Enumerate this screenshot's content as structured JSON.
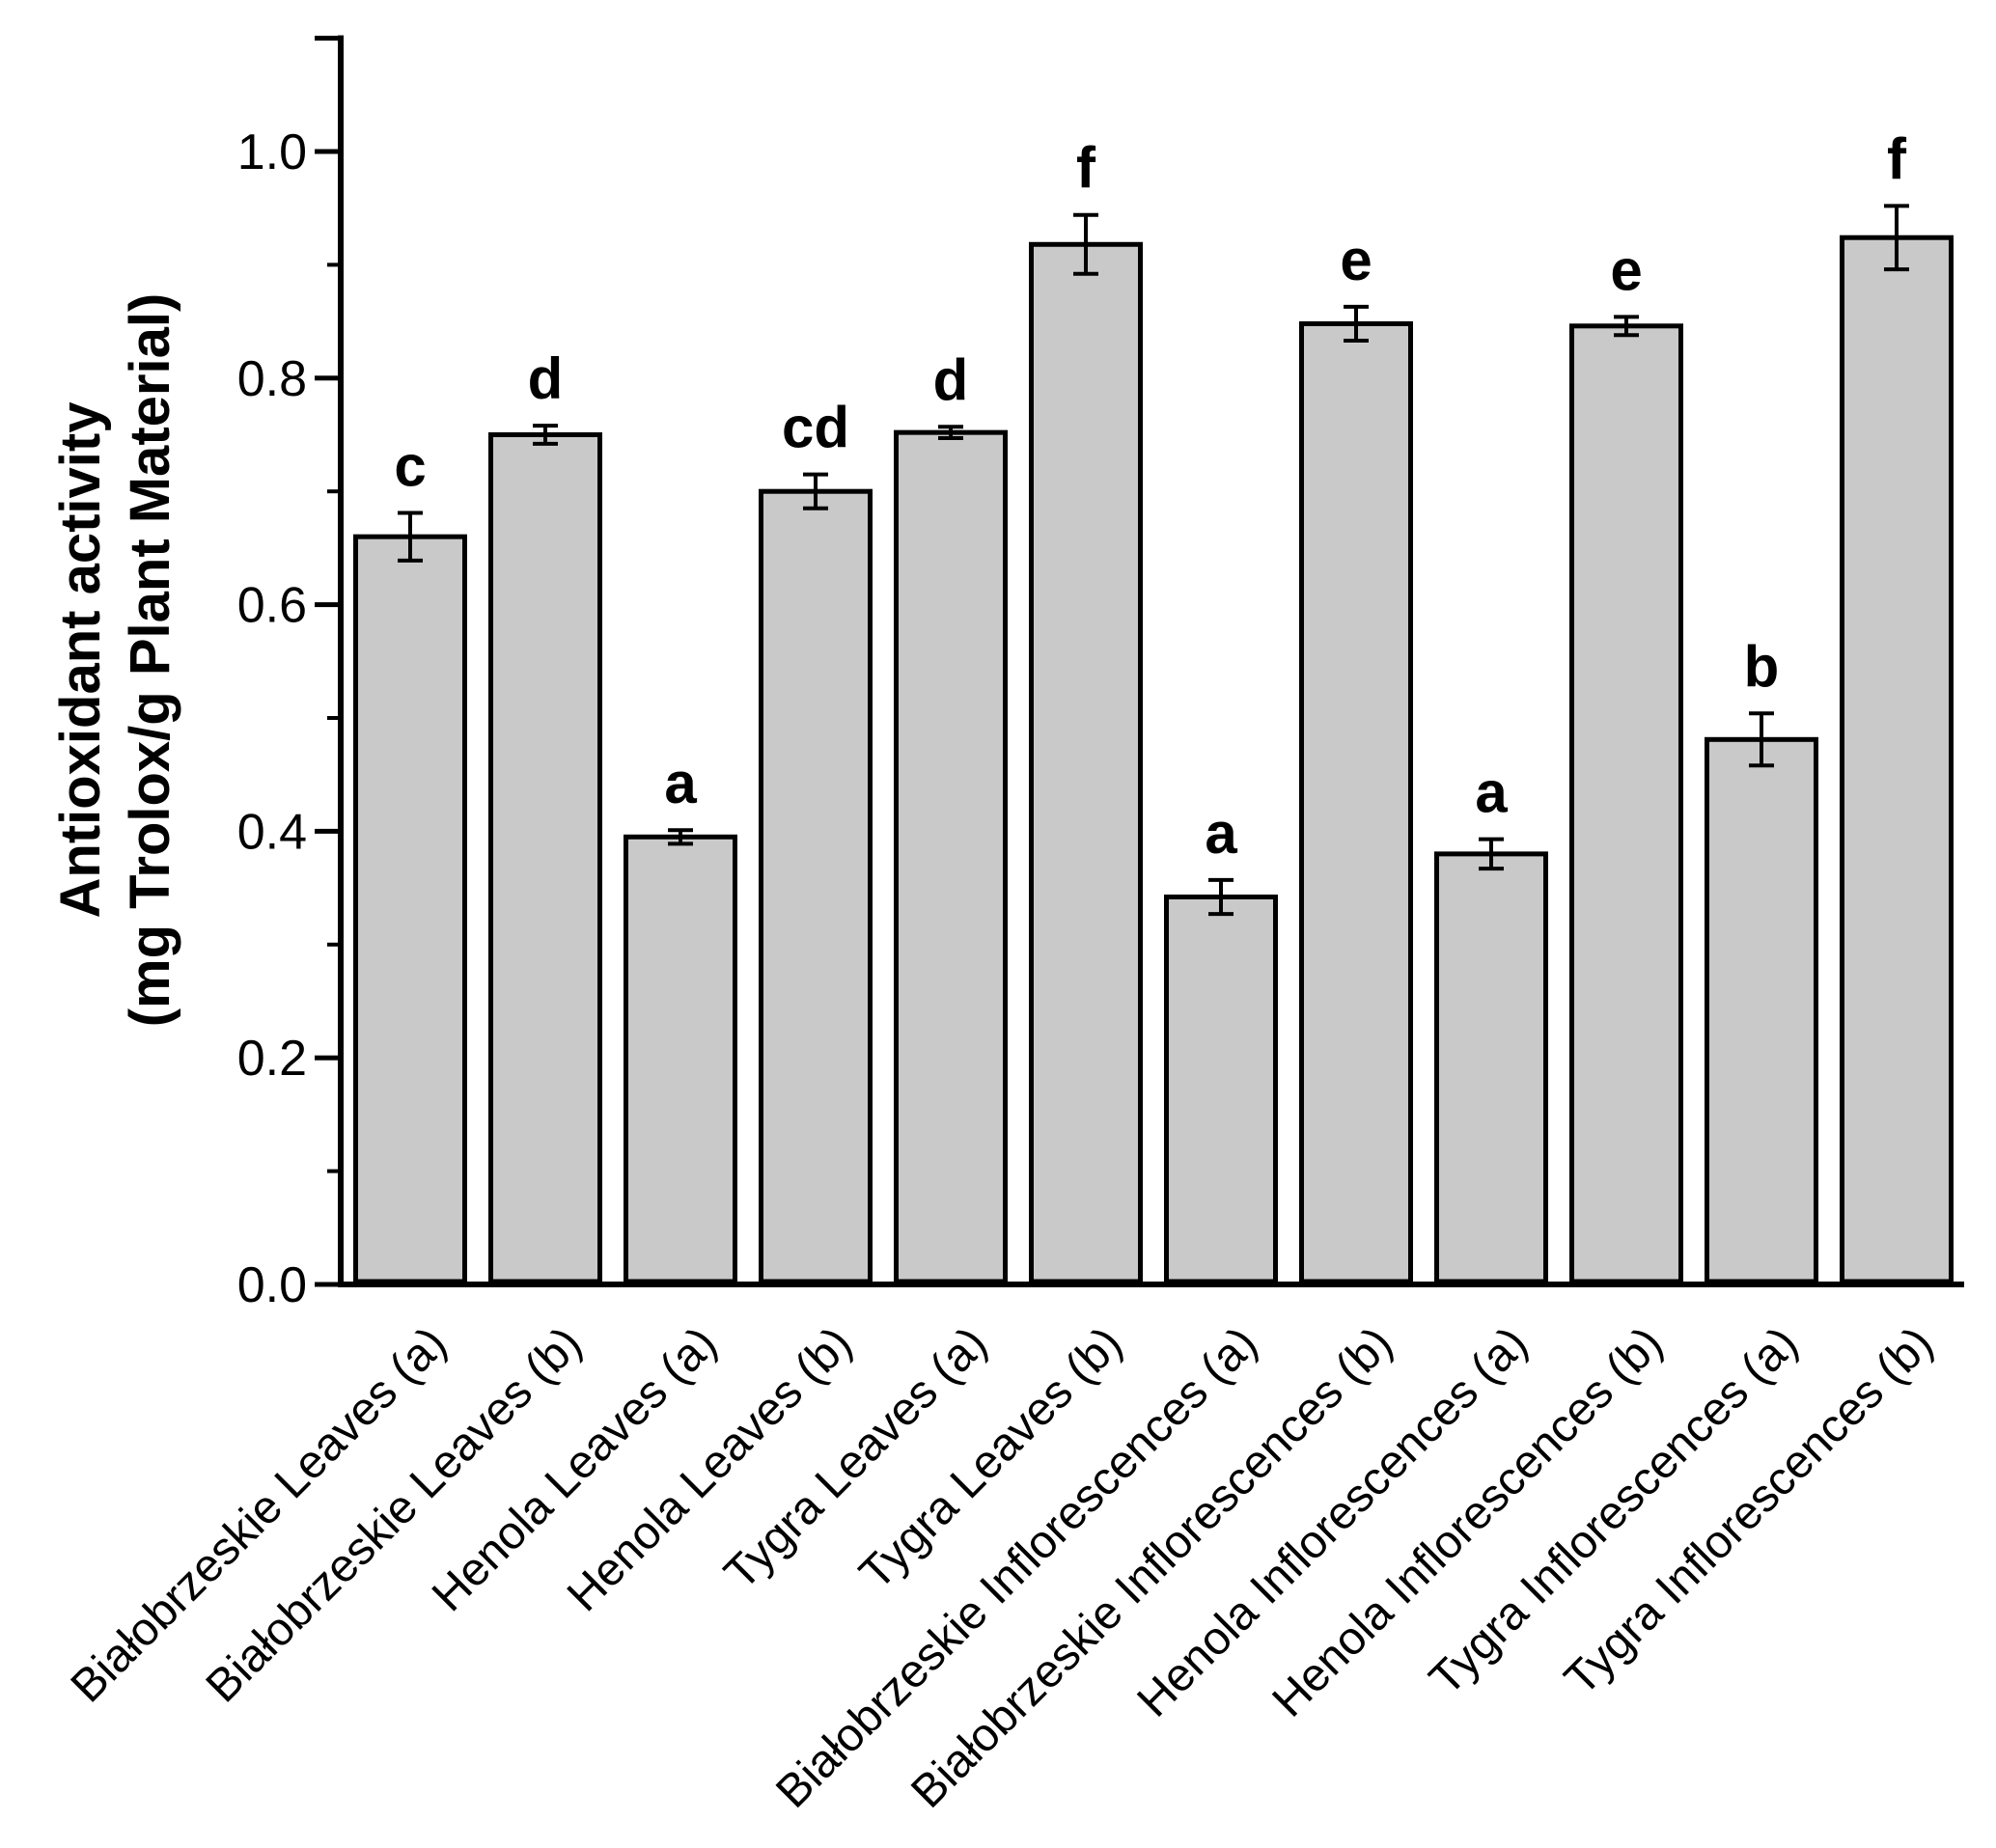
{
  "figure": {
    "background": "#ffffff",
    "y_axis_title_line1": "Antioxidant activity",
    "y_axis_title_line2": "(mg Trolox/g Plant Material)"
  },
  "chart_data": {
    "type": "bar",
    "title": "",
    "xlabel": "",
    "ylabel": "Antioxidant activity (mg Trolox/g Plant Material)",
    "ylim": [
      0.0,
      1.1
    ],
    "grid": false,
    "legend": "none",
    "bar_fill_color": "#c9c9c9",
    "bar_border_color": "#000000",
    "error_bar_color": "#000000",
    "axis_color": "#000000",
    "y_major_ticks": [
      0.0,
      0.2,
      0.4,
      0.6,
      0.8,
      1.0
    ],
    "y_major_tick_labels": [
      "0.0",
      "0.2",
      "0.4",
      "0.6",
      "0.8",
      "1.0"
    ],
    "y_minor_ticks": [
      0.1,
      0.3,
      0.5,
      0.7,
      0.9
    ],
    "y_axis_end_tick": 1.1,
    "categories": [
      "Białobrzeskie Leaves (a)",
      "Białobrzeskie Leaves (b)",
      "Henola Leaves (a)",
      "Henola Leaves (b)",
      "Tygra Leaves (a)",
      "Tygra Leaves (b)",
      "Białobrzeskie Inflorescences (a)",
      "Białobrzeskie Inflorescences (b)",
      "Henola Inflorescences (a)",
      "Henola Inflorescences (b)",
      "Tygra Inflorescences (a)",
      "Tygra Inflorescences (b)"
    ],
    "values": [
      0.66,
      0.75,
      0.395,
      0.7,
      0.752,
      0.918,
      0.342,
      0.848,
      0.38,
      0.846,
      0.481,
      0.924
    ],
    "errors": [
      0.021,
      0.008,
      0.006,
      0.015,
      0.005,
      0.026,
      0.015,
      0.015,
      0.013,
      0.008,
      0.023,
      0.028
    ],
    "sig_letters": [
      "c",
      "d",
      "a",
      "cd",
      "d",
      "f",
      "a",
      "e",
      "a",
      "e",
      "b",
      "f"
    ]
  }
}
